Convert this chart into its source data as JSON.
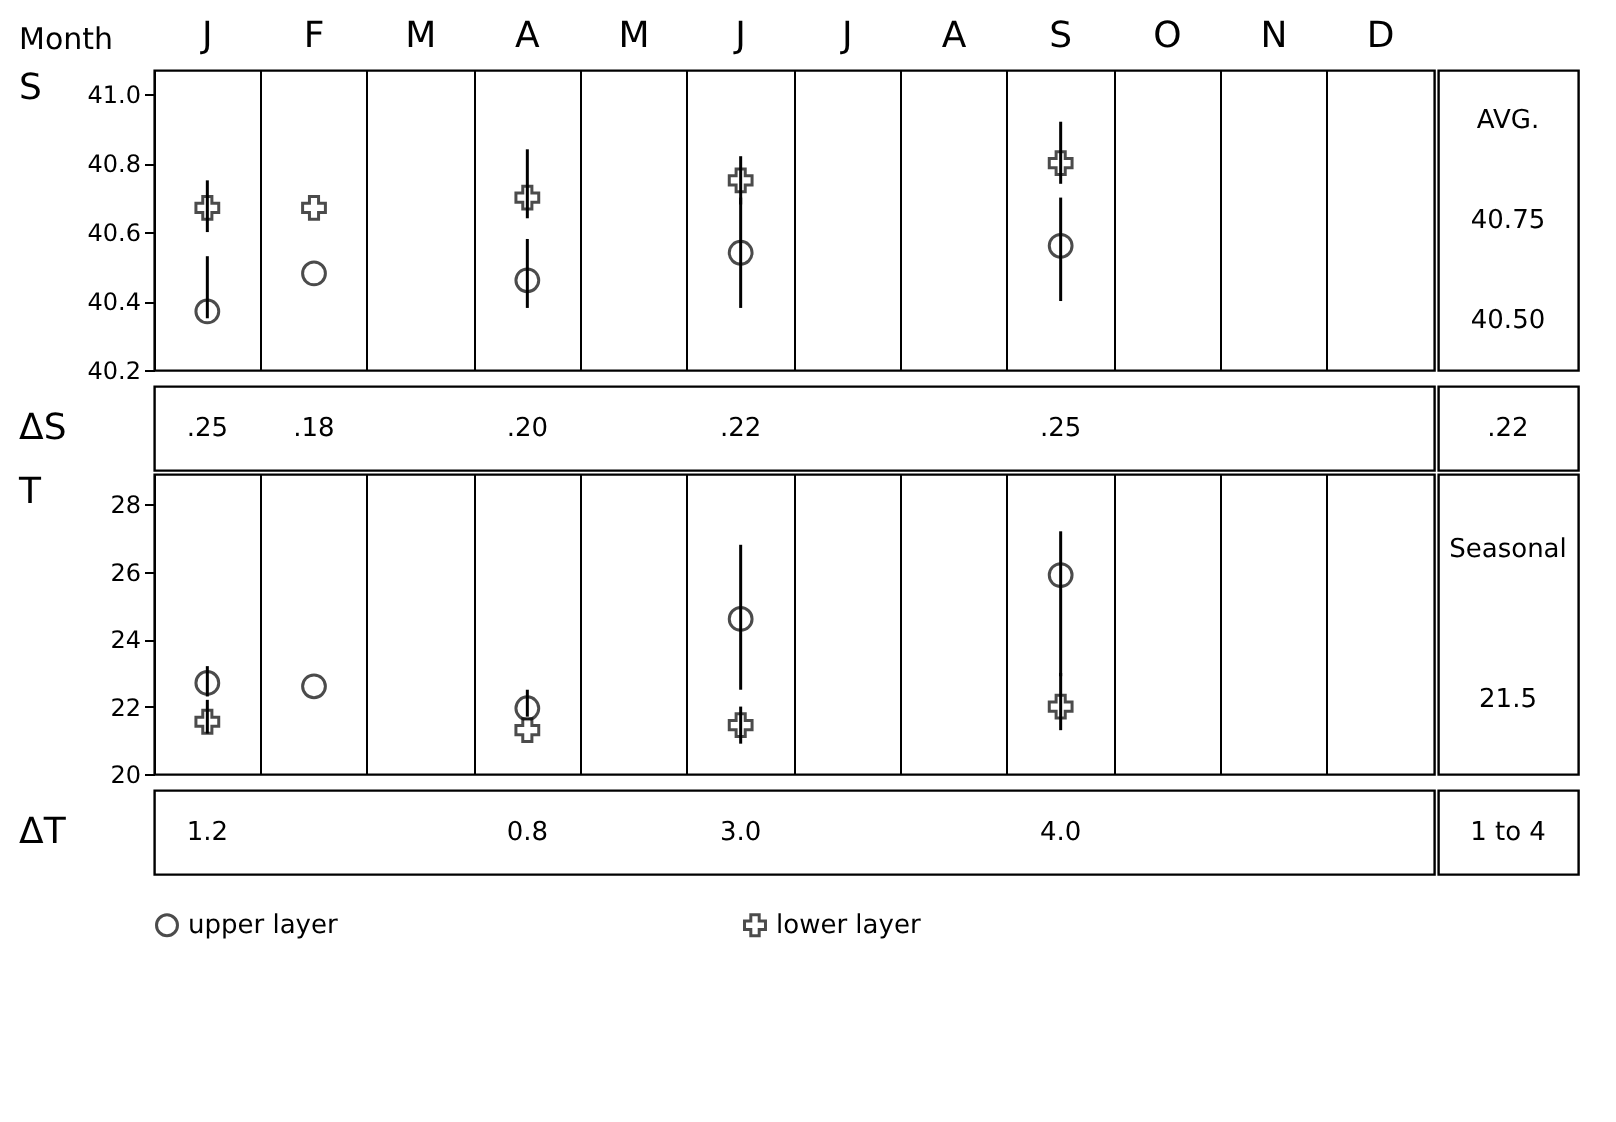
{
  "chart_data": [
    {
      "type": "scatter",
      "xlabel": "Month",
      "ylabel": "S",
      "categories": [
        "J",
        "F",
        "M",
        "A",
        "M",
        "J",
        "J",
        "A",
        "S",
        "O",
        "N",
        "D"
      ],
      "ylim": [
        40.2,
        41.07
      ],
      "yticks": [
        {
          "value": 40.2,
          "label": "40.2"
        },
        {
          "value": 40.4,
          "label": "40.4"
        },
        {
          "value": 40.6,
          "label": "40.6"
        },
        {
          "value": 40.8,
          "label": "40.8"
        },
        {
          "value": 41.0,
          "label": "41.0"
        }
      ],
      "grid": "x",
      "legend": "bottom",
      "series": [
        {
          "name": "upper layer",
          "color": "#000000",
          "marker": "circle",
          "values": [
            40.37,
            40.48,
            null,
            40.46,
            null,
            40.54,
            null,
            null,
            40.56,
            null,
            null,
            null
          ],
          "errors": [
            [
              40.35,
              40.53
            ],
            null,
            null,
            [
              40.38,
              40.58
            ],
            null,
            [
              40.38,
              40.7
            ],
            null,
            null,
            [
              40.4,
              40.7
            ],
            null,
            null,
            null
          ]
        },
        {
          "name": "lower layer",
          "color": "#000000",
          "marker": "cross",
          "values": [
            40.67,
            40.67,
            null,
            40.7,
            null,
            40.75,
            null,
            null,
            40.8,
            null,
            null,
            null
          ],
          "errors": [
            [
              40.6,
              40.75
            ],
            null,
            null,
            [
              40.64,
              40.84
            ],
            null,
            [
              40.68,
              40.82
            ],
            null,
            null,
            [
              40.74,
              40.92
            ],
            null,
            null,
            null
          ]
        }
      ],
      "annotations": [
        "AVG.",
        "40.75",
        "40.50"
      ]
    },
    {
      "type": "other",
      "ylabel": "ΔS",
      "categories": [
        null,
        null,
        null,
        null,
        null,
        null,
        null,
        null,
        null,
        null,
        null,
        null
      ],
      "value_labels": [
        ".25",
        ".18",
        null,
        ".20",
        null,
        ".22",
        null,
        null,
        ".25",
        null,
        null,
        null
      ],
      "annotations": [
        ".22"
      ]
    },
    {
      "type": "scatter",
      "ylabel": "T",
      "categories": [
        "J",
        "F",
        "M",
        "A",
        "M",
        "J",
        "J",
        "A",
        "S",
        "O",
        "N",
        "D"
      ],
      "ylim": [
        20,
        28.9
      ],
      "yticks": [
        20,
        22,
        24,
        26,
        28
      ],
      "grid": "x",
      "legend": "bottom",
      "tick_labels": "y",
      "series": [
        {
          "name": "upper layer",
          "color": "#000000",
          "marker": "circle",
          "values": [
            22.7,
            22.6,
            null,
            21.95,
            null,
            24.6,
            null,
            null,
            25.9,
            null,
            null,
            null
          ],
          "errors": [
            [
              22.3,
              23.2
            ],
            null,
            null,
            [
              21.7,
              22.5
            ],
            null,
            [
              22.5,
              26.8
            ],
            null,
            null,
            [
              22.9,
              27.2
            ],
            null,
            null,
            null
          ]
        },
        {
          "name": "lower layer",
          "color": "#000000",
          "marker": "cross",
          "values": [
            21.55,
            null,
            null,
            21.3,
            null,
            21.45,
            null,
            null,
            22.0,
            null,
            null,
            null
          ],
          "errors": [
            [
              21.2,
              22.2
            ],
            null,
            null,
            null,
            null,
            [
              20.9,
              22.0
            ],
            null,
            null,
            [
              21.3,
              23.0
            ],
            null,
            null,
            null
          ]
        }
      ],
      "annotations": [
        "Seasonal",
        "21.5"
      ]
    },
    {
      "type": "other",
      "ylabel": "ΔT",
      "categories": [
        null,
        null,
        null,
        null,
        null,
        null,
        null,
        null,
        null,
        null,
        null,
        null
      ],
      "value_labels": [
        "1.2",
        null,
        null,
        "0.8",
        null,
        "3.0",
        null,
        null,
        "4.0",
        null,
        null,
        null
      ],
      "annotations": [
        "1 to 4"
      ]
    }
  ]
}
